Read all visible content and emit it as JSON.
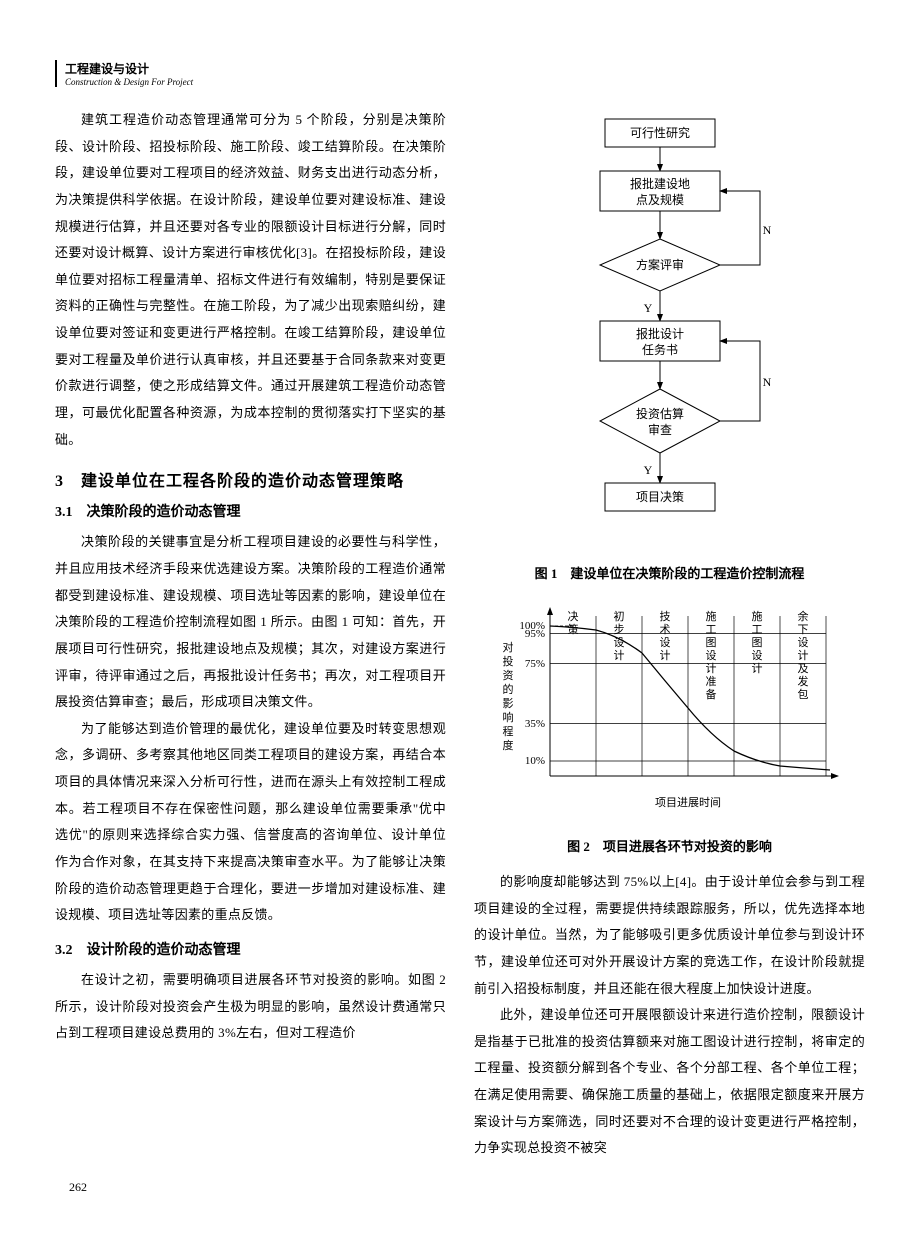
{
  "header": {
    "cn": "工程建设与设计",
    "en": "Construction & Design For Project"
  },
  "left": {
    "p1": "建筑工程造价动态管理通常可分为 5 个阶段，分别是决策阶段、设计阶段、招投标阶段、施工阶段、竣工结算阶段。在决策阶段，建设单位要对工程项目的经济效益、财务支出进行动态分析，为决策提供科学依据。在设计阶段，建设单位要对建设标准、建设规模进行估算，并且还要对各专业的限额设计目标进行分解，同时还要对设计概算、设计方案进行审核优化[3]。在招投标阶段，建设单位要对招标工程量清单、招标文件进行有效编制，特别是要保证资料的正确性与完整性。在施工阶段，为了减少出现索赔纠纷，建设单位要对签证和变更进行严格控制。在竣工结算阶段，建设单位要对工程量及单价进行认真审核，并且还要基于合同条款来对变更价款进行调整，使之形成结算文件。通过开展建筑工程造价动态管理，可最优化配置各种资源，为成本控制的贯彻落实打下坚实的基础。",
    "h3_num": "3",
    "h3_title": "建设单位在工程各阶段的造价动态管理策略",
    "s31_num": "3.1",
    "s31_title": "决策阶段的造价动态管理",
    "p31a": "决策阶段的关键事宜是分析工程项目建设的必要性与科学性，并且应用技术经济手段来优选建设方案。决策阶段的工程造价通常都受到建设标准、建设规模、项目选址等因素的影响，建设单位在决策阶段的工程造价控制流程如图 1 所示。由图 1 可知：首先，开展项目可行性研究，报批建设地点及规模；其次，对建设方案进行评审，待评审通过之后，再报批设计任务书；再次，对工程项目开展投资估算审查；最后，形成项目决策文件。",
    "p31b": "为了能够达到造价管理的最优化，建设单位要及时转变思想观念，多调研、多考察其他地区同类工程项目的建设方案，再结合本项目的具体情况来深入分析可行性，进而在源头上有效控制工程成本。若工程项目不存在保密性问题，那么建设单位需要秉承\"优中选优\"的原则来选择综合实力强、信誉度高的咨询单位、设计单位作为合作对象，在其支持下来提高决策审查水平。为了能够让决策阶段的造价动态管理更趋于合理化，要进一步增加对建设标准、建设规模、项目选址等因素的重点反馈。",
    "s32_num": "3.2",
    "s32_title": "设计阶段的造价动态管理",
    "p32a": "在设计之初，需要明确项目进展各环节对投资的影响。如图 2 所示，设计阶段对投资会产生极为明显的影响，虽然设计费通常只占到工程项目建设总费用的 3%左右，但对工程造价"
  },
  "fig1": {
    "caption": "图 1　建设单位在决策阶段的工程造价控制流程",
    "b1": "可行性研究",
    "b2a": "报批建设地",
    "b2b": "点及规模",
    "d1": "方案评审",
    "b3a": "报批设计",
    "b3b": "任务书",
    "d2a": "投资估算",
    "d2b": "审查",
    "b4": "项目决策",
    "Y": "Y",
    "N": "N"
  },
  "fig2": {
    "caption": "图 2　项目进展各环节对投资的影响",
    "ylabel": "对投资的影响程度",
    "xlabel": "项目进展时间",
    "yticks": [
      "100%",
      "95%",
      "75%",
      "35%",
      "10%"
    ],
    "xcats": [
      "决策",
      "初步设计",
      "技术设计",
      "施工图设计准备",
      "施工图设计",
      "余下设计及发包"
    ],
    "y_values": [
      100,
      95,
      75,
      35,
      10
    ],
    "curve_x": [
      0,
      0.5,
      1,
      2,
      3,
      4,
      5,
      6
    ],
    "curve_y": [
      100,
      99,
      97,
      82,
      45,
      17,
      7,
      3
    ]
  },
  "right": {
    "p1": "的影响度却能够达到 75%以上[4]。由于设计单位会参与到工程项目建设的全过程，需要提供持续跟踪服务，所以，优先选择本地的设计单位。当然，为了能够吸引更多优质设计单位参与到设计环节，建设单位还可对外开展设计方案的竞选工作，在设计阶段就提前引入招投标制度，并且还能在很大程度上加快设计进度。",
    "p2": "此外，建设单位还可开展限额设计来进行造价控制，限额设计是指基于已批准的投资估算额来对施工图设计进行控制，将审定的工程量、投资额分解到各个专业、各个分部工程、各个单位工程；在满足使用需要、确保施工质量的基础上，依据限定额度来开展方案设计与方案筛选，同时还要对不合理的设计变更进行严格控制，力争实现总投资不被突"
  },
  "page_number": "262"
}
